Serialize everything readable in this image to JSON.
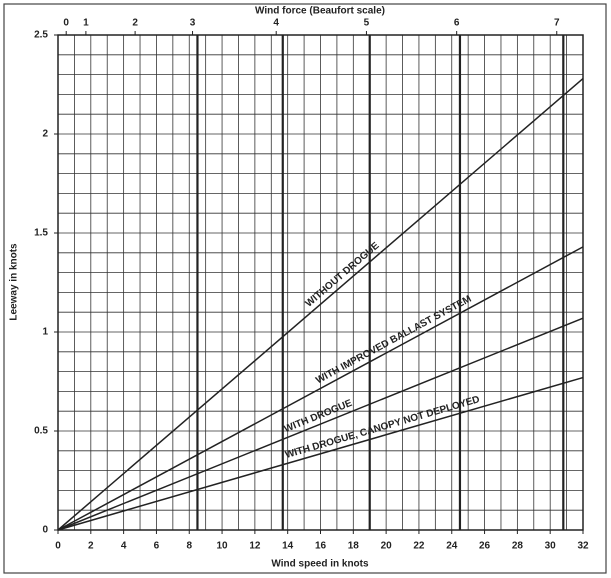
{
  "chart_data": {
    "type": "line",
    "xlabel": "Wind speed in knots",
    "ylabel": "Leeway in knots",
    "x2label": "Wind force (Beaufort scale)",
    "xlim": [
      0,
      32
    ],
    "ylim": [
      0,
      2.5
    ],
    "xticks": [
      0,
      2,
      4,
      6,
      8,
      10,
      12,
      14,
      16,
      18,
      20,
      22,
      24,
      26,
      28,
      30,
      32
    ],
    "yticks": [
      0,
      0.5,
      1,
      1.5,
      2,
      2.5
    ],
    "x2ticks": [
      {
        "value": 0.5,
        "label": "0"
      },
      {
        "value": 1.7,
        "label": "1"
      },
      {
        "value": 4.7,
        "label": "2"
      },
      {
        "value": 8.2,
        "label": "3"
      },
      {
        "value": 13.3,
        "label": "4"
      },
      {
        "value": 18.8,
        "label": "5"
      },
      {
        "value": 24.3,
        "label": "6"
      },
      {
        "value": 30.4,
        "label": "7"
      }
    ],
    "beaufort_boundaries": [
      8.5,
      13.7,
      19,
      24.5,
      30.8
    ],
    "minor_grid": {
      "x": 1,
      "y": 0.1
    },
    "grid": true,
    "series": [
      {
        "name": "WITHOUT DROGUE",
        "color": "#222222",
        "x": [
          0,
          32
        ],
        "values": [
          0,
          2.28
        ]
      },
      {
        "name": "WITH IMPROVED BALLAST SYSTEM",
        "color": "#222222",
        "x": [
          0,
          32
        ],
        "values": [
          0,
          1.43
        ]
      },
      {
        "name": "WITH DROGUE",
        "color": "#222222",
        "x": [
          0,
          32
        ],
        "values": [
          0,
          1.07
        ]
      },
      {
        "name": "WITH DROGUE, CANOPY NOT DEPLOYED",
        "color": "#222222",
        "x": [
          0,
          32
        ],
        "values": [
          0,
          0.77
        ]
      }
    ]
  }
}
